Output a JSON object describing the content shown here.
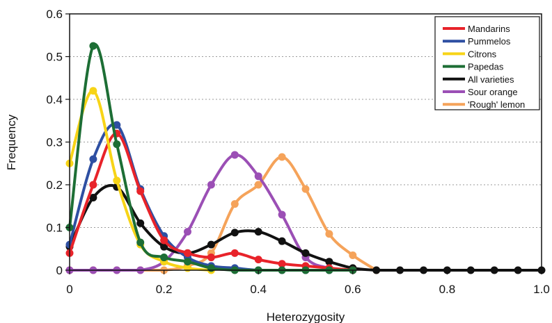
{
  "chart_data": {
    "type": "line",
    "xlabel": "Heterozygosity",
    "ylabel": "Frequency",
    "xlim": [
      0,
      1.0
    ],
    "ylim": [
      0,
      0.6
    ],
    "xticks": [
      "0",
      "0.2",
      "0.4",
      "0.6",
      "0.8",
      "1.0"
    ],
    "yticks": [
      "0",
      "0.1",
      "0.2",
      "0.3",
      "0.4",
      "0.5",
      "0.6"
    ],
    "grid": "horizontal dotted",
    "legend_position": "top-right",
    "x": [
      0,
      0.05,
      0.1,
      0.15,
      0.2,
      0.25,
      0.3,
      0.35,
      0.4,
      0.45,
      0.5,
      0.55,
      0.6,
      0.65,
      0.7,
      0.75,
      0.8,
      0.85,
      0.9,
      0.95,
      1.0
    ],
    "series": [
      {
        "name": "Mandarins",
        "color": "#e8232a",
        "x": [
          0,
          0.05,
          0.1,
          0.15,
          0.2,
          0.25,
          0.3,
          0.35,
          0.4,
          0.45,
          0.5,
          0.55,
          0.6
        ],
        "values": [
          0.04,
          0.2,
          0.32,
          0.185,
          0.07,
          0.04,
          0.03,
          0.04,
          0.025,
          0.015,
          0.01,
          0.005,
          0.0
        ]
      },
      {
        "name": "Pummelos",
        "color": "#2e4fa2",
        "x": [
          0,
          0.05,
          0.1,
          0.15,
          0.2,
          0.25,
          0.3,
          0.35,
          0.4,
          0.45,
          0.5,
          0.55,
          0.6
        ],
        "values": [
          0.06,
          0.26,
          0.34,
          0.19,
          0.08,
          0.03,
          0.01,
          0.005,
          0.0,
          0.0,
          0.0,
          0.0,
          0.0
        ]
      },
      {
        "name": "Citrons",
        "color": "#f7d417",
        "x": [
          0,
          0.05,
          0.1,
          0.15,
          0.2,
          0.25,
          0.3
        ],
        "values": [
          0.25,
          0.42,
          0.21,
          0.06,
          0.02,
          0.005,
          0.0
        ]
      },
      {
        "name": "Papedas",
        "color": "#1d6e35",
        "x": [
          0,
          0.05,
          0.1,
          0.15,
          0.2,
          0.25,
          0.3,
          0.35,
          0.4,
          0.45,
          0.5,
          0.55,
          0.6
        ],
        "values": [
          0.1,
          0.525,
          0.295,
          0.065,
          0.03,
          0.02,
          0.005,
          0.0,
          0.0,
          0.0,
          0.0,
          0.0,
          0.0
        ]
      },
      {
        "name": "All varieties",
        "color": "#111111",
        "x": [
          0,
          0.05,
          0.1,
          0.15,
          0.2,
          0.25,
          0.3,
          0.35,
          0.4,
          0.45,
          0.5,
          0.55,
          0.6,
          0.65,
          0.7,
          0.75,
          0.8,
          0.85,
          0.9,
          0.95,
          1.0
        ],
        "values": [
          0.055,
          0.17,
          0.195,
          0.11,
          0.055,
          0.04,
          0.06,
          0.088,
          0.09,
          0.068,
          0.04,
          0.02,
          0.005,
          0.0,
          0.0,
          0.0,
          0.0,
          0.0,
          0.0,
          0.0,
          0.0
        ]
      },
      {
        "name": "Sour orange",
        "color": "#9b4fb5",
        "x": [
          0,
          0.05,
          0.1,
          0.15,
          0.2,
          0.25,
          0.3,
          0.35,
          0.4,
          0.45,
          0.5,
          0.55,
          0.6
        ],
        "values": [
          0.0,
          0.0,
          0.0,
          0.0,
          0.02,
          0.09,
          0.2,
          0.27,
          0.22,
          0.13,
          0.03,
          0.005,
          0.0
        ]
      },
      {
        "name": "'Rough' lemon",
        "color": "#f5a35a",
        "x": [
          0,
          0.05,
          0.1,
          0.15,
          0.2,
          0.25,
          0.3,
          0.35,
          0.4,
          0.45,
          0.5,
          0.55,
          0.6,
          0.65
        ],
        "values": [
          0.0,
          0.0,
          0.0,
          0.0,
          0.0,
          0.01,
          0.04,
          0.155,
          0.2,
          0.265,
          0.19,
          0.085,
          0.035,
          0.0
        ]
      }
    ]
  }
}
